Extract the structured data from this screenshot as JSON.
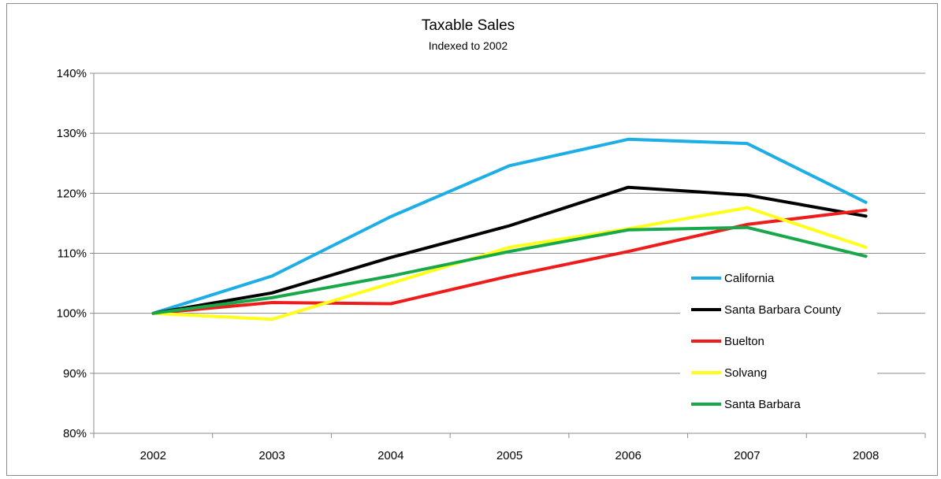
{
  "chart_data": {
    "type": "line",
    "title": "Taxable Sales",
    "subtitle": "Indexed to 2002",
    "xlabel": "",
    "ylabel": "",
    "categories": [
      "2002",
      "2003",
      "2004",
      "2005",
      "2006",
      "2007",
      "2008"
    ],
    "ylim": [
      80,
      140
    ],
    "yticks": [
      80,
      90,
      100,
      110,
      120,
      130,
      140
    ],
    "ytick_labels": [
      "80%",
      "90%",
      "100%",
      "110%",
      "120%",
      "130%",
      "140%"
    ],
    "grid": "horizontal",
    "legend_position": "right",
    "series": [
      {
        "name": "California",
        "color": "#1eaee6",
        "values": [
          100,
          106.2,
          116.1,
          124.6,
          129.0,
          128.3,
          118.5
        ]
      },
      {
        "name": "Santa Barbara County",
        "color": "#000000",
        "values": [
          100,
          103.4,
          109.3,
          114.6,
          121.0,
          119.7,
          116.2
        ]
      },
      {
        "name": "Buelton",
        "color": "#ee1c1c",
        "values": [
          100,
          101.8,
          101.6,
          106.2,
          110.3,
          114.8,
          117.2
        ]
      },
      {
        "name": "Solvang",
        "color": "#ffff1a",
        "values": [
          100,
          99.0,
          105.0,
          111.0,
          114.1,
          117.6,
          111.0
        ]
      },
      {
        "name": "Santa Barbara",
        "color": "#17a84a",
        "values": [
          100,
          102.6,
          106.2,
          110.3,
          113.9,
          114.3,
          109.5
        ]
      }
    ]
  }
}
